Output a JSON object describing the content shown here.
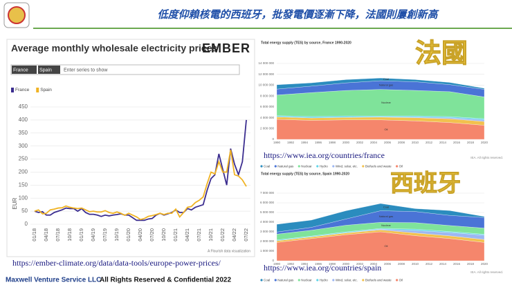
{
  "title": "低度仰賴核電的西班牙，批發電價逐漸下降，法國則屢創新高",
  "ember": {
    "logo": "EMBER",
    "filter_tags": [
      "France",
      "Spain"
    ],
    "filter_placeholder": "Enter series to show",
    "credit": "A Flourish data visualization"
  },
  "links": [
    "https://ember-climate.org/data/data-tools/europe-power-prices/",
    "https://www.iea.org/countries/france",
    "https://www.iea.org/countries/spain"
  ],
  "overlays": [
    "法國",
    "西班牙"
  ],
  "iea_credit": "IEA. All rights reserved.",
  "footer": {
    "company": "Maxwell Venture Service LLC",
    "rights": "All Rights Reserved & Confidential 2022"
  },
  "chart_data": [
    {
      "type": "line",
      "title": "Average monthly wholesale electricity prices",
      "y_label": "EUR",
      "categories": [
        "01/18",
        null,
        null,
        "04/18",
        null,
        null,
        "07/18",
        null,
        null,
        "10/18",
        null,
        null,
        "01/19",
        null,
        null,
        "04/19",
        null,
        null,
        "07/19",
        null,
        null,
        "10/19",
        null,
        null,
        "01/20",
        null,
        null,
        "04/20",
        null,
        null,
        "07/20",
        null,
        null,
        "10/20",
        null,
        null,
        "01/21",
        null,
        null,
        "04/21",
        null,
        null,
        "07/21",
        null,
        null,
        "10/21",
        null,
        null,
        "01/22",
        null,
        null,
        "04/22",
        null,
        null,
        "07/22"
      ],
      "series": [
        {
          "name": "France",
          "color": "#3b2d8f",
          "values": [
            50,
            45,
            48,
            35,
            35,
            45,
            50,
            55,
            62,
            60,
            60,
            50,
            60,
            45,
            38,
            38,
            35,
            30,
            35,
            32,
            35,
            37,
            40,
            35,
            35,
            25,
            15,
            15,
            15,
            20,
            22,
            35,
            42,
            35,
            40,
            45,
            55,
            45,
            45,
            60,
            55,
            65,
            70,
            75,
            130,
            175,
            190,
            270,
            210,
            150,
            290,
            230,
            190,
            240,
            400
          ]
        },
        {
          "name": "Spain",
          "color": "#f0b323",
          "values": [
            50,
            55,
            40,
            42,
            55,
            58,
            62,
            63,
            70,
            65,
            62,
            60,
            62,
            55,
            48,
            50,
            47,
            47,
            52,
            45,
            42,
            47,
            42,
            34,
            42,
            35,
            28,
            18,
            22,
            30,
            33,
            37,
            42,
            37,
            42,
            42,
            58,
            28,
            45,
            65,
            68,
            83,
            92,
            105,
            155,
            200,
            193,
            240,
            200,
            200,
            285,
            190,
            185,
            170,
            145
          ]
        }
      ],
      "ylim": [
        0,
        450
      ],
      "yticks": [
        0,
        50,
        100,
        150,
        200,
        250,
        300,
        350,
        400,
        450
      ],
      "grid": true,
      "legend": "top-left"
    },
    {
      "type": "area",
      "stacked": true,
      "title": "Total energy supply (TES) by source, France 1990-2020",
      "x": [
        1990,
        1995,
        2000,
        2005,
        2010,
        2015,
        2020
      ],
      "xlim": [
        1990,
        2020
      ],
      "xticks": [
        1990,
        1992,
        1994,
        1996,
        1998,
        2000,
        2002,
        2004,
        2006,
        2008,
        2010,
        2012,
        2014,
        2016,
        2018,
        2020
      ],
      "ylim": [
        0,
        14000000
      ],
      "yticks": [
        0,
        {
          "value": 2000000,
          "label": "2 000 000"
        },
        {
          "value": 4000000,
          "label": "4 000 000"
        },
        {
          "value": 6000000,
          "label": "6 000 000"
        },
        {
          "value": 8000000,
          "label": "8 000 000"
        },
        {
          "value": 10000000,
          "label": "10 000 000"
        },
        {
          "value": 12000000,
          "label": "12 000 000"
        },
        {
          "value": 14000000,
          "label": "14 000 000"
        }
      ],
      "legend": "bottom",
      "grid": true,
      "series": [
        {
          "name": "Coal",
          "color": "#2b8cbe",
          "values": [
            800000,
            600000,
            600000,
            500000,
            400000,
            400000,
            200000
          ]
        },
        {
          "name": "Natural gas",
          "color": "#4a74d6",
          "values": [
            1100000,
            1200000,
            1400000,
            1600000,
            1600000,
            1300000,
            1400000
          ]
        },
        {
          "name": "Nuclear",
          "color": "#7fe39a",
          "values": [
            3800000,
            4400000,
            4700000,
            4900000,
            4700000,
            4600000,
            4000000
          ]
        },
        {
          "name": "Hydro",
          "color": "#5fd4e8",
          "values": [
            200000,
            250000,
            250000,
            180000,
            230000,
            200000,
            220000
          ]
        },
        {
          "name": "Wind, solar, etc.",
          "color": "#9db7f2",
          "values": [
            20000,
            20000,
            20000,
            30000,
            100000,
            200000,
            300000
          ]
        },
        {
          "name": "Biofuels and waste",
          "color": "#f2c14e",
          "values": [
            450000,
            450000,
            450000,
            500000,
            600000,
            700000,
            700000
          ]
        },
        {
          "name": "Oil",
          "color": "#f5866c",
          "values": [
            3700000,
            3500000,
            3600000,
            3600000,
            3400000,
            3100000,
            2600000
          ]
        }
      ]
    },
    {
      "type": "area",
      "stacked": true,
      "title": "Total energy supply (TES) by source, Spain 1990-2020",
      "x": [
        1990,
        1995,
        2000,
        2005,
        2010,
        2015,
        2020
      ],
      "xlim": [
        1990,
        2020
      ],
      "xticks": [
        1990,
        1992,
        1994,
        1996,
        1998,
        2000,
        2002,
        2004,
        2006,
        2008,
        2010,
        2012,
        2014,
        2016,
        2018,
        2020
      ],
      "ylim": [
        0,
        7000000
      ],
      "yticks": [
        0,
        {
          "value": 1000000,
          "label": "1 000 000"
        },
        {
          "value": 2000000,
          "label": "2 000 000"
        },
        {
          "value": 3000000,
          "label": "3 000 000"
        },
        {
          "value": 4000000,
          "label": "4 000 000"
        },
        {
          "value": 5000000,
          "label": "5 000 000"
        },
        {
          "value": 6000000,
          "label": "6 000 000"
        },
        {
          "value": 7000000,
          "label": "7 000 000"
        }
      ],
      "legend": "bottom",
      "grid": true,
      "series": [
        {
          "name": "Coal",
          "color": "#2b8cbe",
          "values": [
            800000,
            750000,
            850000,
            750000,
            300000,
            500000,
            100000
          ]
        },
        {
          "name": "Natural gas",
          "color": "#4a74d6",
          "values": [
            220000,
            300000,
            650000,
            1200000,
            1150000,
            1050000,
            1100000
          ]
        },
        {
          "name": "Nuclear",
          "color": "#7fe39a",
          "values": [
            600000,
            600000,
            680000,
            630000,
            670000,
            620000,
            630000
          ]
        },
        {
          "name": "Hydro",
          "color": "#5fd4e8",
          "values": [
            90000,
            80000,
            100000,
            70000,
            150000,
            100000,
            100000
          ]
        },
        {
          "name": "Wind, solar, etc.",
          "color": "#9db7f2",
          "values": [
            0,
            10000,
            20000,
            80000,
            250000,
            350000,
            450000
          ]
        },
        {
          "name": "Biofuels and waste",
          "color": "#f2c14e",
          "values": [
            170000,
            170000,
            180000,
            200000,
            280000,
            280000,
            300000
          ]
        },
        {
          "name": "Oil",
          "color": "#f5866c",
          "values": [
            1900000,
            2300000,
            2700000,
            3000000,
            2600000,
            2300000,
            1900000
          ]
        }
      ]
    }
  ]
}
